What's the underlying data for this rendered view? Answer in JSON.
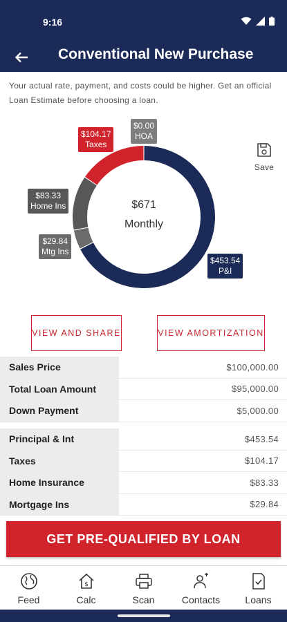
{
  "status": {
    "time": "9:16"
  },
  "header": {
    "title": "Conventional New Purchase"
  },
  "disclaimer": "Your actual rate, payment, and costs could be higher. Get an official Loan Estimate before choosing a loan.",
  "chart_data": {
    "type": "pie",
    "center_value": "$671",
    "center_label": "Monthly",
    "slices": [
      {
        "name": "P&I",
        "label": "$453.54",
        "value": 453.54,
        "color": "#1b2a57"
      },
      {
        "name": "Mtg Ins",
        "label": "$29.84",
        "value": 29.84,
        "color": "#6b6b6b"
      },
      {
        "name": "Home Ins",
        "label": "$83.33",
        "value": 83.33,
        "color": "#585858"
      },
      {
        "name": "Taxes",
        "label": "$104.17",
        "value": 104.17,
        "color": "#d0232c"
      },
      {
        "name": "HOA",
        "label": "$0.00",
        "value": 0.0,
        "color": "#7d7d7d"
      }
    ]
  },
  "save": {
    "label": "Save"
  },
  "actions": {
    "share": "VIEW AND SHARE",
    "amortization": "VIEW AMORTIZATION"
  },
  "loan_table": [
    {
      "label": "Sales Price",
      "value": "$100,000.00"
    },
    {
      "label": "Total Loan Amount",
      "value": "$95,000.00"
    },
    {
      "label": "Down Payment",
      "value": "$5,000.00"
    }
  ],
  "payment_table": [
    {
      "label": "Principal & Int",
      "value": "$453.54"
    },
    {
      "label": "Taxes",
      "value": "$104.17"
    },
    {
      "label": "Home Insurance",
      "value": "$83.33"
    },
    {
      "label": "Mortgage Ins",
      "value": "$29.84"
    }
  ],
  "cta": {
    "label": "GET PRE-QUALIFIED BY LOAN"
  },
  "nav": [
    {
      "label": "Feed",
      "icon": "globe-icon"
    },
    {
      "label": "Calc",
      "icon": "calculator-house-icon"
    },
    {
      "label": "Scan",
      "icon": "printer-scan-icon"
    },
    {
      "label": "Contacts",
      "icon": "contacts-icon"
    },
    {
      "label": "Loans",
      "icon": "document-check-icon"
    }
  ],
  "colors": {
    "brand": "#1b2a57",
    "accent": "#d0232c"
  }
}
